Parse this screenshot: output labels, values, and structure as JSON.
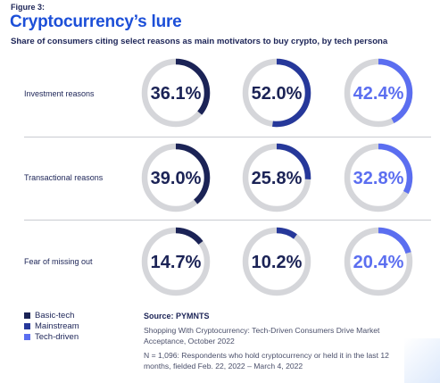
{
  "figure_label": "Figure 3:",
  "title": "Cryptocurrency’s lure",
  "subtitle": "Share of consumers citing select reasons as main motivators to buy crypto, by tech persona",
  "chart_data": {
    "type": "donut",
    "categories": [
      "Investment reasons",
      "Transactional reasons",
      "Fear of missing out"
    ],
    "series": [
      {
        "name": "Basic-tech",
        "color": "#1b2356",
        "values": [
          36.1,
          39.0,
          14.7
        ]
      },
      {
        "name": "Mainstream",
        "color": "#26389a",
        "values": [
          52.0,
          25.8,
          10.2
        ]
      },
      {
        "name": "Tech-driven",
        "color": "#5b6ef0",
        "values": [
          42.4,
          32.8,
          20.4
        ]
      }
    ],
    "value_labels": [
      [
        "36.1%",
        "52.0%",
        "42.4%"
      ],
      [
        "39.0%",
        "25.8%",
        "32.8%"
      ],
      [
        "14.7%",
        "10.2%",
        "20.4%"
      ]
    ],
    "track_color": "#d5d6da",
    "label_color": "#1b2356",
    "legend_position": "bottom-left"
  },
  "legend": [
    "Basic-tech",
    "Mainstream",
    "Tech-driven"
  ],
  "source": {
    "title": "Source: PYMNTS",
    "line1": "Shopping With Cryptocurrency: Tech-Driven Consumers Drive Market Acceptance, October 2022",
    "line2": "N = 1,096: Respondents who hold cryptocurrency or held it in the last 12 months, fielded Feb. 22, 2022 – March 4, 2022"
  }
}
